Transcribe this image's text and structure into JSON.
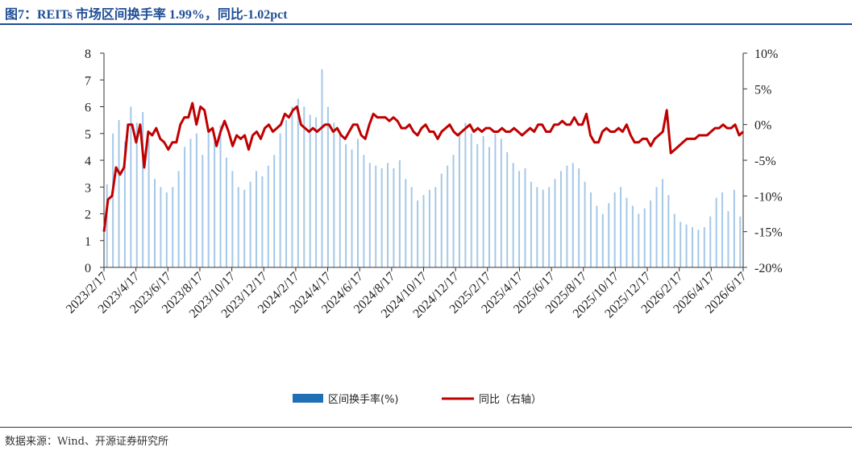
{
  "header": {
    "title": "图7：REITs 市场区间换手率 1.99%，同比-1.02pct"
  },
  "footer": {
    "source": "数据来源：Wind、开源证券研究所"
  },
  "chart_data": {
    "type": "bar+line",
    "title": "",
    "colors": {
      "bars": "#5b9bd5",
      "line": "#c00000",
      "legend_bar": "#1f6fb5"
    },
    "x_ticks": [
      "2023/2/17",
      "2023/4/17",
      "2023/6/17",
      "2023/8/17",
      "2023/10/17",
      "2023/12/17",
      "2024/2/17",
      "2024/4/17",
      "2024/6/17",
      "2024/8/17",
      "2024/10/17",
      "2024/12/17",
      "2025/2/17",
      "2025/4/17",
      "2025/6/17",
      "2025/8/17",
      "2025/10/17",
      "2025/12/17",
      "2026/2/17",
      "2026/4/17",
      "2026/6/17"
    ],
    "left_axis": {
      "min": 0,
      "max": 8,
      "ticks": [
        "0",
        "1",
        "2",
        "3",
        "4",
        "5",
        "6",
        "7",
        "8"
      ]
    },
    "right_axis": {
      "min": -20,
      "max": 10,
      "ticks": [
        "-20%",
        "-15%",
        "-10%",
        "-5%",
        "0%",
        "5%",
        "10%"
      ]
    },
    "series": [
      {
        "name": "区间换手率(%)",
        "type": "bar",
        "axis": "left",
        "values": [
          3.1,
          5.0,
          5.5,
          4.7,
          6.0,
          5.4,
          5.8,
          4.8,
          3.3,
          3.0,
          2.8,
          3.0,
          3.6,
          4.5,
          4.8,
          5.0,
          4.2,
          5.2,
          4.7,
          5.3,
          4.1,
          3.6,
          3.0,
          2.9,
          3.2,
          3.6,
          3.4,
          3.8,
          4.2,
          5.0,
          5.5,
          6.0,
          6.3,
          6.0,
          5.7,
          5.6,
          7.4,
          6.0,
          5.4,
          5.0,
          4.6,
          4.4,
          4.8,
          4.2,
          3.9,
          3.8,
          3.7,
          3.9,
          3.7,
          4.0,
          3.3,
          3.0,
          2.5,
          2.7,
          2.9,
          3.0,
          3.5,
          3.8,
          4.2,
          5.0,
          5.4,
          5.0,
          4.6,
          4.9,
          4.5,
          5.0,
          4.8,
          4.3,
          3.9,
          3.6,
          3.7,
          3.2,
          3.0,
          2.9,
          3.0,
          3.3,
          3.6,
          3.8,
          3.9,
          3.7,
          3.2,
          2.8,
          2.3,
          2.0,
          2.4,
          2.8,
          3.0,
          2.6,
          2.3,
          2.0,
          2.2,
          2.5,
          3.0,
          3.3,
          2.7,
          2.0,
          1.7,
          1.6,
          1.5,
          1.4,
          1.5,
          1.9,
          2.6,
          2.8,
          2.1,
          2.9,
          1.9
        ]
      },
      {
        "name": "同比（右轴）",
        "type": "line",
        "axis": "right",
        "values": [
          -15,
          -10.5,
          -10,
          -6,
          -7,
          -6,
          0,
          0,
          -2.5,
          0,
          -6,
          -1,
          -1.5,
          -0.5,
          -2,
          -2.5,
          -3.5,
          -2.5,
          -2.5,
          0,
          1,
          1,
          3,
          0,
          2.5,
          2,
          -1,
          -0.5,
          -3,
          -1,
          0.5,
          -1,
          -3,
          -1.5,
          -2,
          -1.5,
          -3.5,
          -1.5,
          -1,
          -2,
          -0.5,
          0,
          -1,
          -0.5,
          0,
          1.5,
          1,
          2,
          2.5,
          0,
          -0.5,
          -1,
          -0.5,
          -1,
          -0.5,
          0,
          0,
          -1,
          -0.5,
          -1.5,
          -2,
          -1,
          0,
          0,
          -1.5,
          -2,
          0,
          1.5,
          1,
          1,
          1,
          0.5,
          1,
          0.5,
          -0.5,
          -0.5,
          0,
          -1,
          -1.5,
          -0.5,
          0,
          -1,
          -1,
          -2,
          -1,
          -0.5,
          0,
          -1,
          -1.5,
          -1,
          -0.5,
          0,
          -1,
          -0.5,
          -1,
          -0.5,
          -0.5,
          -1,
          -1,
          -0.5,
          -1,
          -1,
          -0.5,
          -1,
          -1.5,
          -1,
          -0.5,
          -1,
          0,
          0,
          -1,
          -1,
          0,
          0,
          0.5,
          0,
          0,
          1,
          0,
          0,
          1.5,
          -1.5,
          -2.5,
          -2.5,
          -1,
          -0.5,
          -1,
          -1,
          -0.5,
          -1,
          0,
          -1.5,
          -2.5,
          -2.5,
          -2,
          -2,
          -3,
          -2,
          -1.5,
          -1,
          2,
          -4,
          -3.5,
          -3,
          -2.5,
          -2,
          -2,
          -2,
          -1.5,
          -1.5,
          -1.5,
          -1,
          -0.5,
          -0.5,
          0,
          -0.5,
          -0.5,
          0,
          -1.5,
          -1
        ]
      }
    ],
    "legend_position": "bottom-center",
    "grid": false
  }
}
